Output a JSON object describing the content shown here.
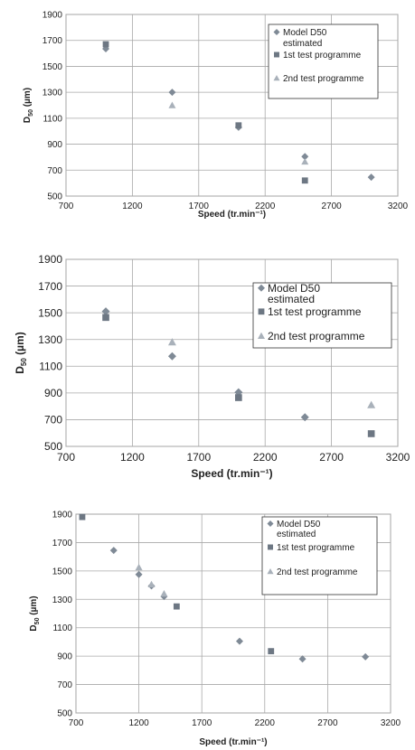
{
  "chart_data": [
    {
      "type": "scatter",
      "xlabel": "Speed (tr.min⁻¹)",
      "ylabel_main": "D",
      "ylabel_sub": "50",
      "ylabel_unit": " (µm)",
      "xlim": [
        700,
        3200
      ],
      "ylim": [
        500,
        1900
      ],
      "xticks": [
        "700",
        "1200",
        "1700",
        "2200",
        "2700",
        "3200"
      ],
      "yticks": [
        "500",
        "700",
        "900",
        "1100",
        "1300",
        "1500",
        "1700",
        "1900"
      ],
      "legend_placement": "top-right",
      "series": [
        {
          "name": "Model D50 estimated",
          "name_lines": [
            "Model D50",
            "estimated"
          ],
          "marker": "diamond",
          "color": "#7f8a96",
          "points": [
            [
              1000,
              1635
            ],
            [
              1500,
              1300
            ],
            [
              2000,
              1030
            ],
            [
              2500,
              805
            ],
            [
              3000,
              645
            ]
          ]
        },
        {
          "name": "1st test programme",
          "name_lines": [
            "1st test programme"
          ],
          "marker": "square",
          "color": "#6d7783",
          "points": [
            [
              1000,
              1670
            ],
            [
              2000,
              1045
            ],
            [
              2500,
              620
            ]
          ]
        },
        {
          "name": "2nd test programme",
          "name_lines": [
            "2nd test programme"
          ],
          "marker": "triangle",
          "color": "#a9b1ba",
          "points": [
            [
              1500,
              1200
            ],
            [
              2500,
              765
            ]
          ]
        }
      ]
    },
    {
      "type": "scatter",
      "xlabel": "Speed (tr.min⁻¹)",
      "ylabel_main": "D",
      "ylabel_sub": "50",
      "ylabel_unit": " (µm)",
      "xlim": [
        700,
        3200
      ],
      "ylim": [
        500,
        1900
      ],
      "xticks": [
        "700",
        "1200",
        "1700",
        "2200",
        "2700",
        "3200"
      ],
      "yticks": [
        "500",
        "700",
        "900",
        "1100",
        "1300",
        "1500",
        "1700",
        "1900"
      ],
      "legend_placement": "right",
      "series": [
        {
          "name": "Model D50 estimated",
          "name_lines": [
            "Model D50",
            "estimated"
          ],
          "marker": "diamond",
          "color": "#7f8a96",
          "points": [
            [
              1000,
              1510
            ],
            [
              1500,
              1175
            ],
            [
              2000,
              905
            ],
            [
              2500,
              718
            ]
          ]
        },
        {
          "name": "1st test programme",
          "name_lines": [
            "1st test programme"
          ],
          "marker": "square",
          "color": "#6d7783",
          "points": [
            [
              1000,
              1465
            ],
            [
              2000,
              865
            ],
            [
              3000,
              595
            ]
          ]
        },
        {
          "name": "2nd test programme",
          "name_lines": [
            "2nd test programme"
          ],
          "marker": "triangle",
          "color": "#a9b1ba",
          "points": [
            [
              1500,
              1280
            ],
            [
              3000,
              810
            ]
          ]
        }
      ]
    },
    {
      "type": "scatter",
      "xlabel": "Speed (tr.min⁻¹)",
      "ylabel_main": "D",
      "ylabel_sub": "50",
      "ylabel_unit": " (µm)",
      "xlim": [
        700,
        3200
      ],
      "ylim": [
        500,
        1900
      ],
      "xticks": [
        "700",
        "1200",
        "1700",
        "2200",
        "2700",
        "3200"
      ],
      "yticks": [
        "500",
        "700",
        "900",
        "1100",
        "1300",
        "1500",
        "1700",
        "1900"
      ],
      "legend_placement": "top-right",
      "series": [
        {
          "name": "Model D50 estimated",
          "name_lines": [
            "Model D50",
            "estimated"
          ],
          "marker": "diamond",
          "color": "#7f8a96",
          "points": [
            [
              1000,
              1645
            ],
            [
              1200,
              1475
            ],
            [
              1300,
              1395
            ],
            [
              1400,
              1320
            ],
            [
              2000,
              1005
            ],
            [
              2500,
              880
            ],
            [
              3000,
              895
            ]
          ]
        },
        {
          "name": "1st test programme",
          "name_lines": [
            "1st test programme"
          ],
          "marker": "square",
          "color": "#6d7783",
          "points": [
            [
              750,
              1880
            ],
            [
              1500,
              1250
            ],
            [
              2250,
              935
            ]
          ]
        },
        {
          "name": "2nd test programme",
          "name_lines": [
            "2nd test programme"
          ],
          "marker": "triangle",
          "color": "#a9b1ba",
          "points": [
            [
              1200,
              1525
            ],
            [
              1300,
              1405
            ],
            [
              1400,
              1340
            ]
          ]
        }
      ]
    }
  ]
}
